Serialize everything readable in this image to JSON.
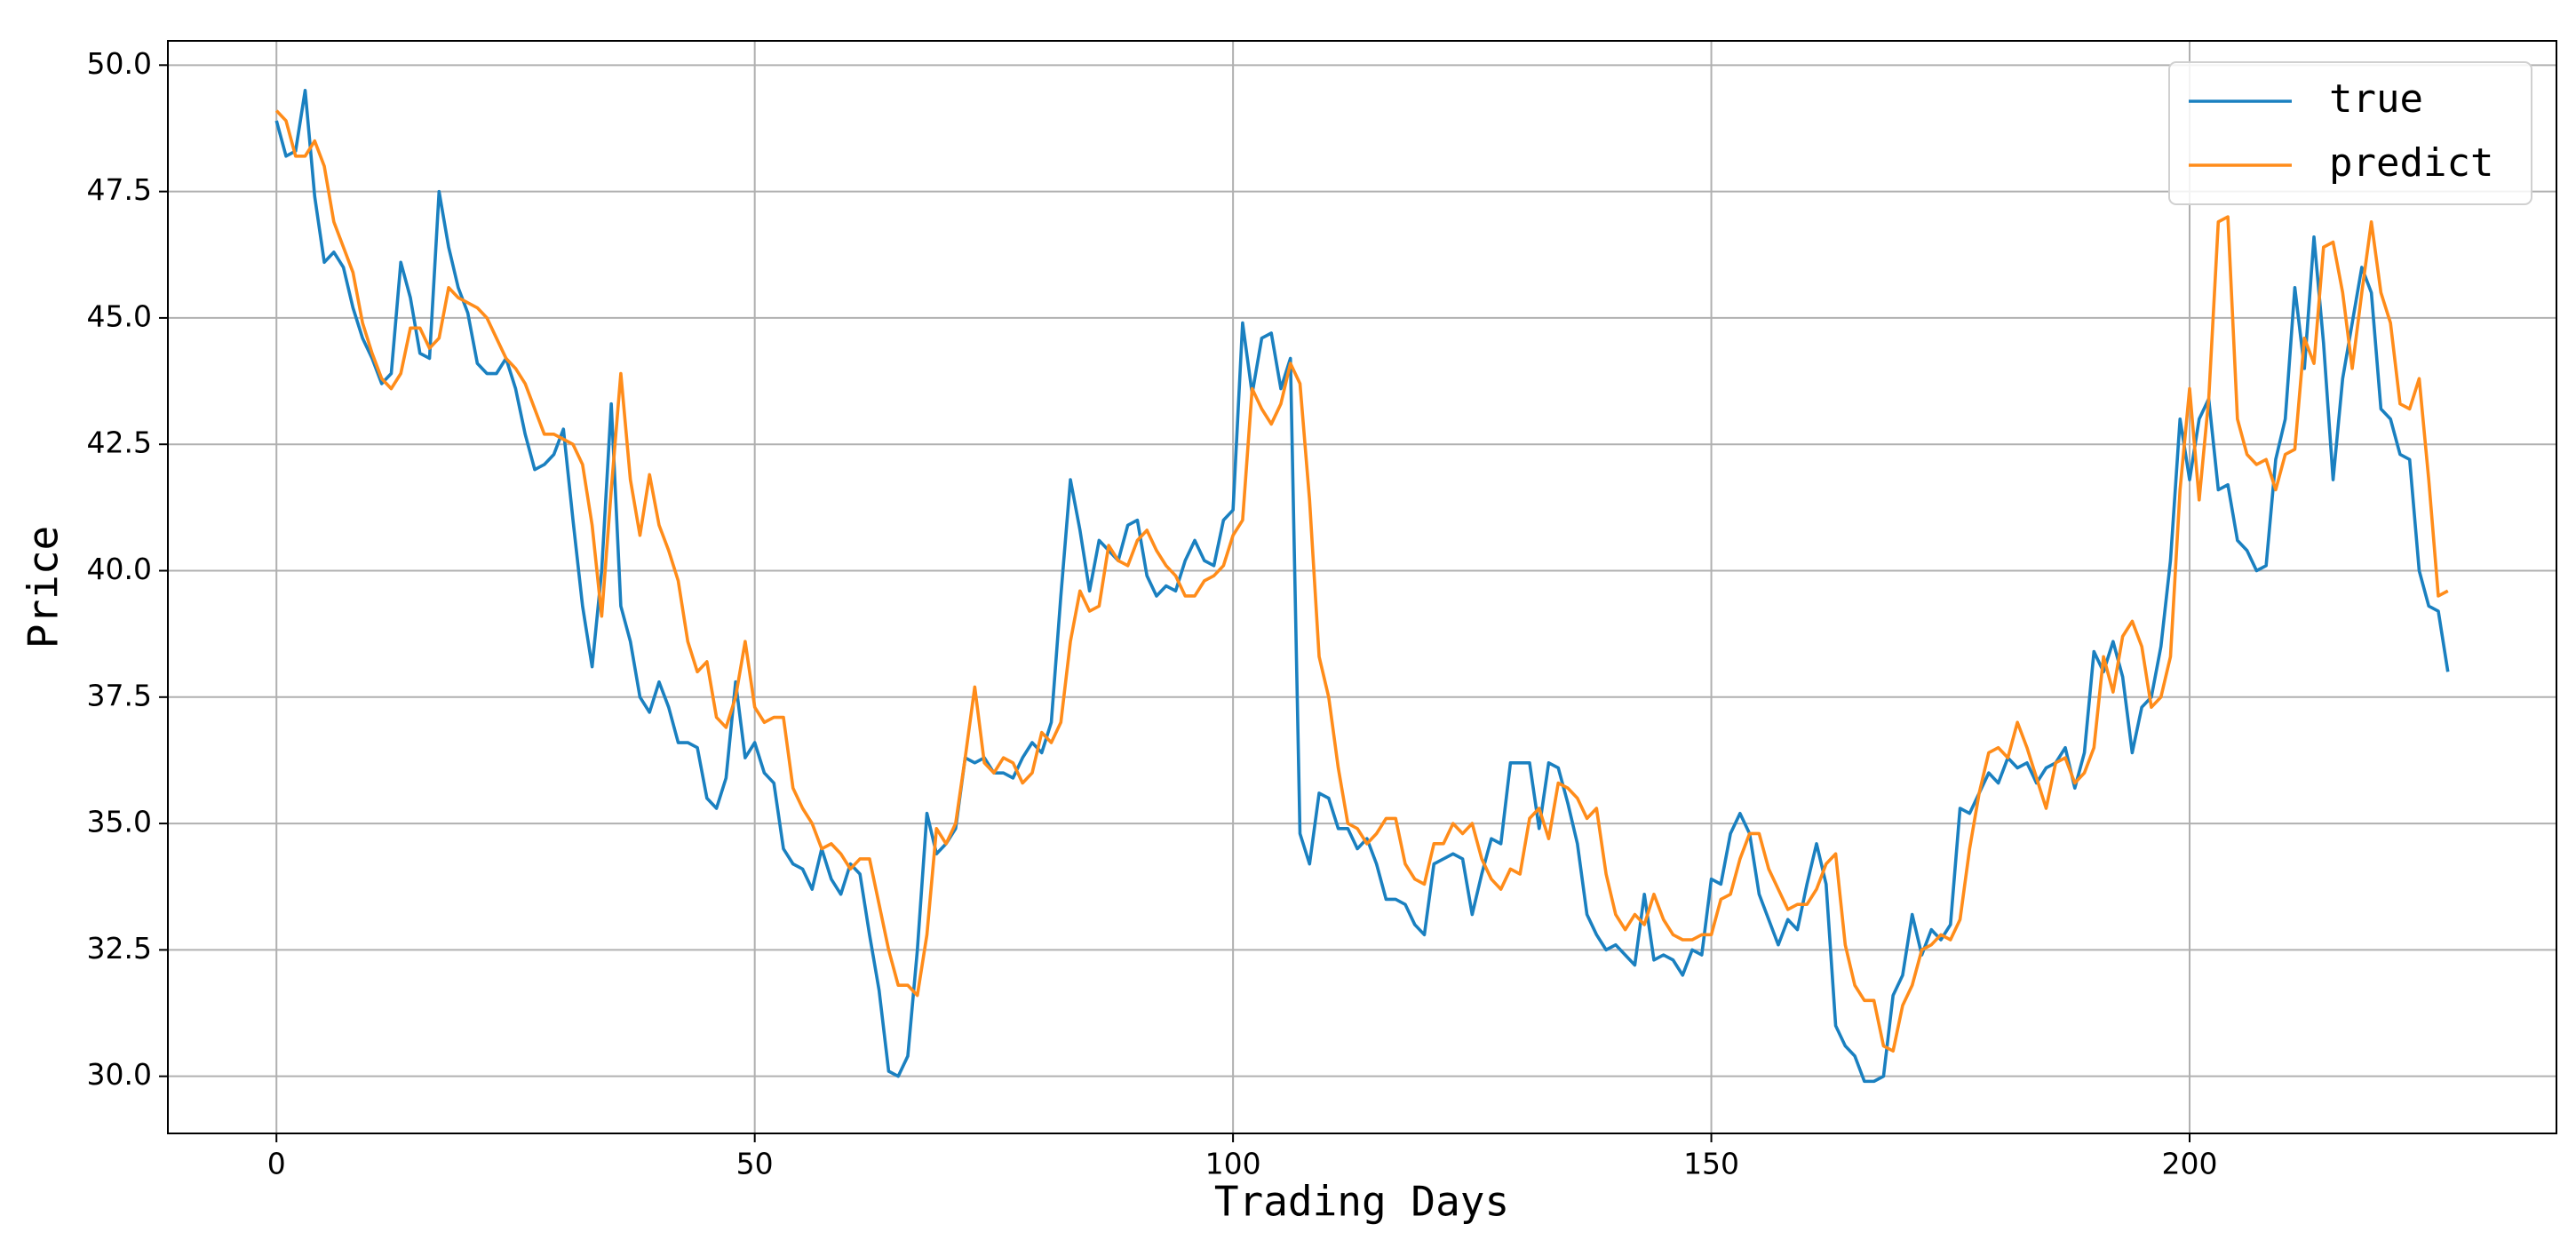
{
  "chart_data": {
    "type": "line",
    "xlabel": "Trading Days",
    "ylabel": "Price",
    "x": [
      0,
      1,
      2,
      3,
      4,
      5,
      6,
      7,
      8,
      9,
      10,
      11,
      12,
      13,
      14,
      15,
      16,
      17,
      18,
      19,
      20,
      21,
      22,
      23,
      24,
      25,
      26,
      27,
      28,
      29,
      30,
      31,
      32,
      33,
      34,
      35,
      36,
      37,
      38,
      39,
      40,
      41,
      42,
      43,
      44,
      45,
      46,
      47,
      48,
      49,
      50,
      51,
      52,
      53,
      54,
      55,
      56,
      57,
      58,
      59,
      60,
      61,
      62,
      63,
      64,
      65,
      66,
      67,
      68,
      69,
      70,
      71,
      72,
      73,
      74,
      75,
      76,
      77,
      78,
      79,
      80,
      81,
      82,
      83,
      84,
      85,
      86,
      87,
      88,
      89,
      90,
      91,
      92,
      93,
      94,
      95,
      96,
      97,
      98,
      99,
      100,
      101,
      102,
      103,
      104,
      105,
      106,
      107,
      108,
      109,
      110,
      111,
      112,
      113,
      114,
      115,
      116,
      117,
      118,
      119,
      120,
      121,
      122,
      123,
      124,
      125,
      126,
      127,
      128,
      129,
      130,
      131,
      132,
      133,
      134,
      135,
      136,
      137,
      138,
      139,
      140,
      141,
      142,
      143,
      144,
      145,
      146,
      147,
      148,
      149,
      150,
      151,
      152,
      153,
      154,
      155,
      156,
      157,
      158,
      159,
      160,
      161,
      162,
      163,
      164,
      165,
      166,
      167,
      168,
      169,
      170,
      171,
      172,
      173,
      174,
      175,
      176,
      177,
      178,
      179,
      180,
      181,
      182,
      183,
      184,
      185,
      186,
      187,
      188,
      189,
      190,
      191,
      192,
      193,
      194,
      195,
      196,
      197,
      198,
      199,
      200,
      201,
      202,
      203,
      204,
      205,
      206,
      207,
      208,
      209,
      210,
      211,
      212,
      213,
      214,
      215,
      216,
      217,
      218,
      219,
      220,
      221,
      222,
      223,
      224,
      225,
      226,
      227
    ],
    "series": [
      {
        "name": "true",
        "color": "#1a80c0",
        "values": [
          48.9,
          48.2,
          48.3,
          49.5,
          47.4,
          46.1,
          46.3,
          46.0,
          45.2,
          44.6,
          44.2,
          43.7,
          43.9,
          46.1,
          45.4,
          44.3,
          44.2,
          47.5,
          46.4,
          45.6,
          45.1,
          44.1,
          43.9,
          43.9,
          44.2,
          43.6,
          42.7,
          42.0,
          42.1,
          42.3,
          42.8,
          41.0,
          39.3,
          38.1,
          40.0,
          43.3,
          39.3,
          38.6,
          37.5,
          37.2,
          37.8,
          37.3,
          36.6,
          36.6,
          36.5,
          35.5,
          35.3,
          35.9,
          37.8,
          36.3,
          36.6,
          36.0,
          35.8,
          34.5,
          34.2,
          34.1,
          33.7,
          34.5,
          33.9,
          33.6,
          34.2,
          34.0,
          32.8,
          31.7,
          30.1,
          30.0,
          30.4,
          32.5,
          35.2,
          34.4,
          34.6,
          34.9,
          36.3,
          36.2,
          36.3,
          36.0,
          36.0,
          35.9,
          36.3,
          36.6,
          36.4,
          37.0,
          39.5,
          41.8,
          40.8,
          39.6,
          40.6,
          40.4,
          40.2,
          40.9,
          41.0,
          39.9,
          39.5,
          39.7,
          39.6,
          40.2,
          40.6,
          40.2,
          40.1,
          41.0,
          41.2,
          44.9,
          43.5,
          44.6,
          44.7,
          43.6,
          44.2,
          34.8,
          34.2,
          35.6,
          35.5,
          34.9,
          34.9,
          34.5,
          34.7,
          34.2,
          33.5,
          33.5,
          33.4,
          33.0,
          32.8,
          34.2,
          34.3,
          34.4,
          34.3,
          33.2,
          34.0,
          34.7,
          34.6,
          36.2,
          36.2,
          36.2,
          34.9,
          36.2,
          36.1,
          35.4,
          34.6,
          33.2,
          32.8,
          32.5,
          32.6,
          32.4,
          32.2,
          33.6,
          32.3,
          32.4,
          32.3,
          32.0,
          32.5,
          32.4,
          33.9,
          33.8,
          34.8,
          35.2,
          34.8,
          33.6,
          33.1,
          32.6,
          33.1,
          32.9,
          33.8,
          34.6,
          33.8,
          31.0,
          30.6,
          30.4,
          29.9,
          29.9,
          30.0,
          31.6,
          32.0,
          33.2,
          32.4,
          32.9,
          32.7,
          33.0,
          35.3,
          35.2,
          35.6,
          36.0,
          35.8,
          36.3,
          36.1,
          36.2,
          35.8,
          36.1,
          36.2,
          36.5,
          35.7,
          36.4,
          38.4,
          38.0,
          38.6,
          37.9,
          36.4,
          37.3,
          37.5,
          38.5,
          40.2,
          43.0,
          41.8,
          43.0,
          43.4,
          41.6,
          41.7,
          40.6,
          40.4,
          40.0,
          40.1,
          42.2,
          43.0,
          45.6,
          44.0,
          46.6,
          44.5,
          41.8,
          43.8,
          44.9,
          46.0,
          45.5,
          43.2,
          43.0,
          42.3,
          42.2,
          40.0,
          39.3,
          39.2,
          38.0
        ]
      },
      {
        "name": "predict",
        "color": "#ff8c1a",
        "values": [
          49.1,
          48.9,
          48.2,
          48.2,
          48.5,
          48.0,
          46.9,
          46.4,
          45.9,
          44.9,
          44.3,
          43.8,
          43.6,
          43.9,
          44.8,
          44.8,
          44.4,
          44.6,
          45.6,
          45.4,
          45.3,
          45.2,
          45.0,
          44.6,
          44.2,
          44.0,
          43.7,
          43.2,
          42.7,
          42.7,
          42.6,
          42.5,
          42.1,
          40.9,
          39.1,
          41.6,
          43.9,
          41.8,
          40.7,
          41.9,
          40.9,
          40.4,
          39.8,
          38.6,
          38.0,
          38.2,
          37.1,
          36.9,
          37.5,
          38.6,
          37.3,
          37.0,
          37.1,
          37.1,
          35.7,
          35.3,
          35.0,
          34.5,
          34.6,
          34.4,
          34.1,
          34.3,
          34.3,
          33.4,
          32.5,
          31.8,
          31.8,
          31.6,
          32.8,
          34.9,
          34.6,
          35.0,
          36.3,
          37.7,
          36.2,
          36.0,
          36.3,
          36.2,
          35.8,
          36.0,
          36.8,
          36.6,
          37.0,
          38.6,
          39.6,
          39.2,
          39.3,
          40.5,
          40.2,
          40.1,
          40.6,
          40.8,
          40.4,
          40.1,
          39.9,
          39.5,
          39.5,
          39.8,
          39.9,
          40.1,
          40.7,
          41.0,
          43.6,
          43.2,
          42.9,
          43.3,
          44.1,
          43.7,
          41.4,
          38.3,
          37.5,
          36.1,
          35.0,
          34.9,
          34.6,
          34.8,
          35.1,
          35.1,
          34.2,
          33.9,
          33.8,
          34.6,
          34.6,
          35.0,
          34.8,
          35.0,
          34.3,
          33.9,
          33.7,
          34.1,
          34.0,
          35.1,
          35.3,
          34.7,
          35.8,
          35.7,
          35.5,
          35.1,
          35.3,
          34.0,
          33.2,
          32.9,
          33.2,
          33.0,
          33.6,
          33.1,
          32.8,
          32.7,
          32.7,
          32.8,
          32.8,
          33.5,
          33.6,
          34.3,
          34.8,
          34.8,
          34.1,
          33.7,
          33.3,
          33.4,
          33.4,
          33.7,
          34.2,
          34.4,
          32.6,
          31.8,
          31.5,
          31.5,
          30.6,
          30.5,
          31.4,
          31.8,
          32.5,
          32.6,
          32.8,
          32.7,
          33.1,
          34.5,
          35.6,
          36.4,
          36.5,
          36.3,
          37.0,
          36.5,
          35.9,
          35.3,
          36.2,
          36.3,
          35.8,
          36.0,
          36.5,
          38.3,
          37.6,
          38.7,
          39.0,
          38.5,
          37.3,
          37.5,
          38.3,
          41.6,
          43.6,
          41.4,
          43.4,
          46.9,
          47.0,
          43.0,
          42.3,
          42.1,
          42.2,
          41.6,
          42.3,
          42.4,
          44.6,
          44.1,
          46.4,
          46.5,
          45.5,
          44.0,
          45.5,
          46.9,
          45.5,
          44.9,
          43.3,
          43.2,
          43.8,
          41.8,
          39.5,
          39.6
        ]
      }
    ],
    "xlim": [
      -11.35,
      238.35
    ],
    "ylim": [
      28.87,
      50.48
    ],
    "xticks": [
      0,
      50,
      100,
      150,
      200
    ],
    "yticks": [
      {
        "value": 30,
        "label": "30.0"
      },
      {
        "value": 32.5,
        "label": "32.5"
      },
      {
        "value": 35,
        "label": "35.0"
      },
      {
        "value": 37.5,
        "label": "37.5"
      },
      {
        "value": 40,
        "label": "40.0"
      },
      {
        "value": 42.5,
        "label": "42.5"
      },
      {
        "value": 45,
        "label": "45.0"
      },
      {
        "value": 47.5,
        "label": "47.5"
      },
      {
        "value": 50,
        "label": "50.0"
      }
    ],
    "grid": true,
    "legend": "upper right"
  }
}
